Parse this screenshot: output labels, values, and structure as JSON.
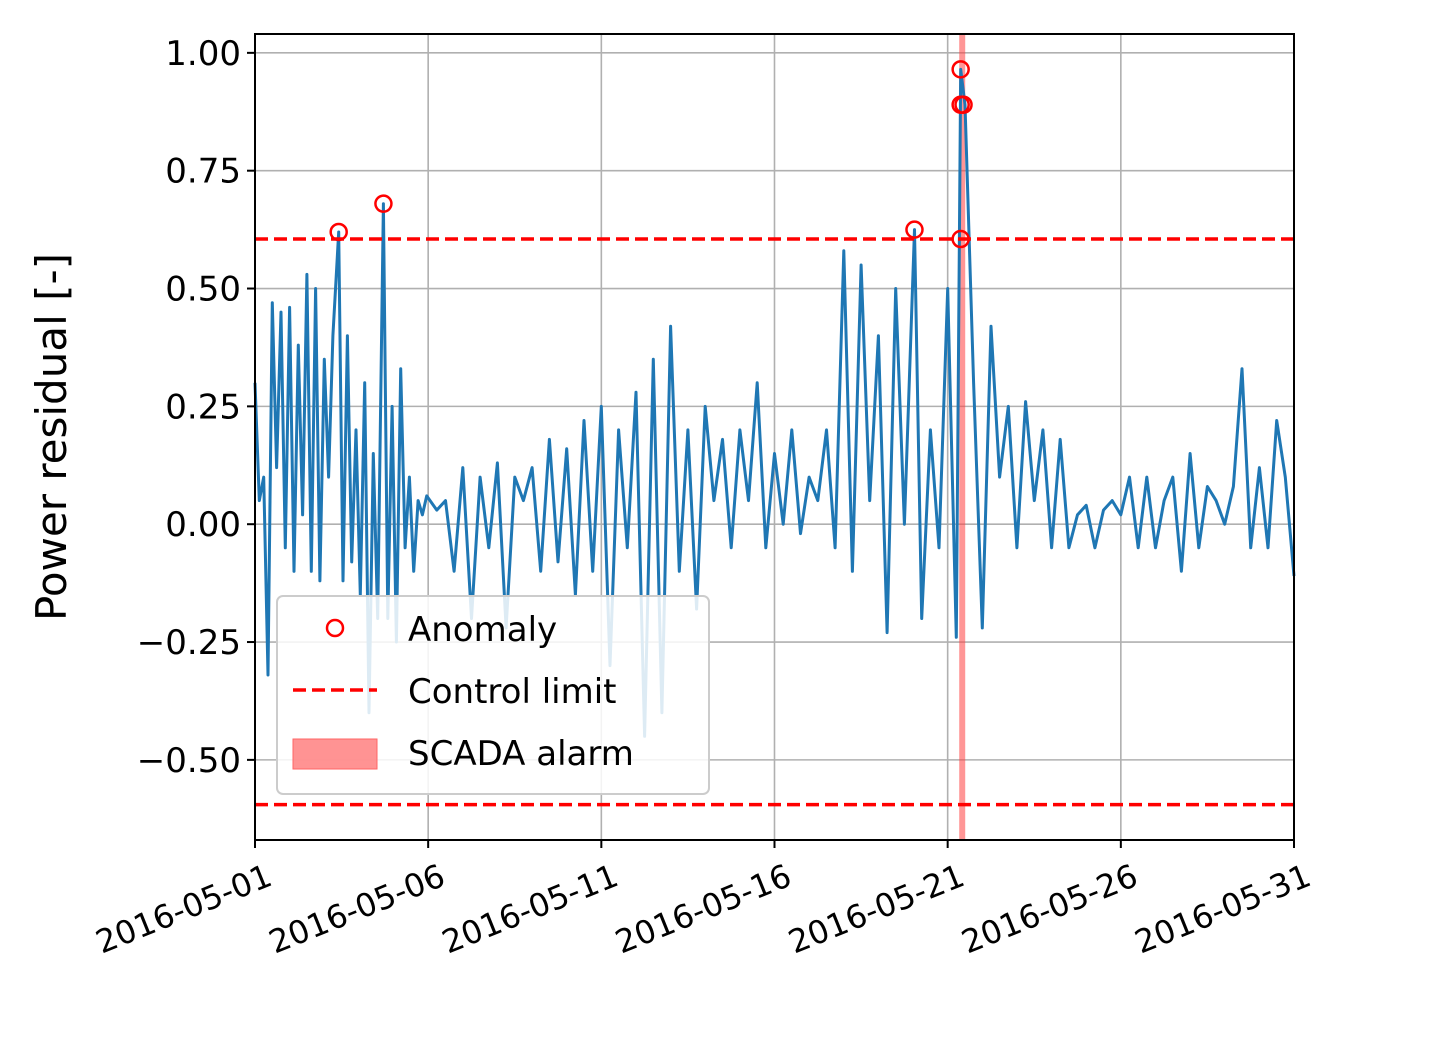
{
  "chart_data": {
    "type": "line",
    "title": "",
    "xlabel": "",
    "ylabel": "Power residual [-]",
    "xlim": [
      "2016-05-01",
      "2016-05-31"
    ],
    "ylim": [
      -0.67,
      1.04
    ],
    "x_ticks": [
      "2016-05-01",
      "2016-05-06",
      "2016-05-11",
      "2016-05-16",
      "2016-05-21",
      "2016-05-26",
      "2016-05-31"
    ],
    "y_ticks": [
      "1.00",
      "0.75",
      "0.50",
      "0.25",
      "0.00",
      "−0.25",
      "−0.50"
    ],
    "grid": true,
    "legend_position": "lower-left",
    "colors": {
      "series": "#1f77b4",
      "limit": "#ff0000",
      "anomaly": "#ff0000",
      "alarm": "#ff8080"
    },
    "legend": [
      {
        "label": "Anomaly",
        "kind": "marker"
      },
      {
        "label": "Control limit",
        "kind": "dashed-line"
      },
      {
        "label": "SCADA alarm",
        "kind": "patch"
      }
    ],
    "control_limits": [
      0.605,
      -0.595
    ],
    "scada_alarm": {
      "x_start": "2016-05-21 08:00",
      "x_end": "2016-05-21 12:00"
    },
    "anomalies": [
      {
        "x": "2016-05-03 10:00",
        "y": 0.62
      },
      {
        "x": "2016-05-04 17:00",
        "y": 0.68
      },
      {
        "x": "2016-05-20 01:00",
        "y": 0.625
      },
      {
        "x": "2016-05-21 09:00",
        "y": 0.965
      },
      {
        "x": "2016-05-21 09:00",
        "y": 0.89
      },
      {
        "x": "2016-05-21 11:00",
        "y": 0.89
      },
      {
        "x": "2016-05-21 09:00",
        "y": 0.605
      }
    ],
    "series": [
      {
        "x": [
          "2016-05-01 00:00",
          "2016-05-01 03:00",
          "2016-05-01 06:00",
          "2016-05-01 09:00",
          "2016-05-01 12:00",
          "2016-05-01 15:00",
          "2016-05-01 18:00",
          "2016-05-01 21:00",
          "2016-05-02 00:00",
          "2016-05-02 03:00",
          "2016-05-02 06:00",
          "2016-05-02 09:00",
          "2016-05-02 12:00",
          "2016-05-02 15:00",
          "2016-05-02 18:00",
          "2016-05-02 21:00",
          "2016-05-03 00:00",
          "2016-05-03 03:00",
          "2016-05-03 06:00",
          "2016-05-03 10:00",
          "2016-05-03 13:00",
          "2016-05-03 16:00",
          "2016-05-03 19:00",
          "2016-05-03 22:00",
          "2016-05-04 01:00",
          "2016-05-04 04:00",
          "2016-05-04 07:00",
          "2016-05-04 10:00",
          "2016-05-04 13:00",
          "2016-05-04 17:00",
          "2016-05-04 20:00",
          "2016-05-04 23:00",
          "2016-05-05 02:00",
          "2016-05-05 05:00",
          "2016-05-05 08:00",
          "2016-05-05 11:00",
          "2016-05-05 14:00",
          "2016-05-05 17:00",
          "2016-05-05 20:00",
          "2016-05-05 23:00",
          "2016-05-06 06:00",
          "2016-05-06 12:00",
          "2016-05-06 18:00",
          "2016-05-07 00:00",
          "2016-05-07 06:00",
          "2016-05-07 12:00",
          "2016-05-07 18:00",
          "2016-05-08 00:00",
          "2016-05-08 06:00",
          "2016-05-08 12:00",
          "2016-05-08 18:00",
          "2016-05-09 00:00",
          "2016-05-09 06:00",
          "2016-05-09 12:00",
          "2016-05-09 18:00",
          "2016-05-10 00:00",
          "2016-05-10 06:00",
          "2016-05-10 12:00",
          "2016-05-10 18:00",
          "2016-05-11 00:00",
          "2016-05-11 06:00",
          "2016-05-11 12:00",
          "2016-05-11 18:00",
          "2016-05-12 00:00",
          "2016-05-12 06:00",
          "2016-05-12 12:00",
          "2016-05-12 18:00",
          "2016-05-13 00:00",
          "2016-05-13 06:00",
          "2016-05-13 12:00",
          "2016-05-13 18:00",
          "2016-05-14 00:00",
          "2016-05-14 06:00",
          "2016-05-14 12:00",
          "2016-05-14 18:00",
          "2016-05-15 00:00",
          "2016-05-15 06:00",
          "2016-05-15 12:00",
          "2016-05-15 18:00",
          "2016-05-16 00:00",
          "2016-05-16 06:00",
          "2016-05-16 12:00",
          "2016-05-16 18:00",
          "2016-05-17 00:00",
          "2016-05-17 06:00",
          "2016-05-17 12:00",
          "2016-05-17 18:00",
          "2016-05-18 00:00",
          "2016-05-18 06:00",
          "2016-05-18 12:00",
          "2016-05-18 18:00",
          "2016-05-19 00:00",
          "2016-05-19 06:00",
          "2016-05-19 12:00",
          "2016-05-19 18:00",
          "2016-05-20 01:00",
          "2016-05-20 06:00",
          "2016-05-20 12:00",
          "2016-05-20 18:00",
          "2016-05-21 00:00",
          "2016-05-21 06:00",
          "2016-05-21 09:00",
          "2016-05-21 12:00",
          "2016-05-21 18:00",
          "2016-05-22 00:00",
          "2016-05-22 06:00",
          "2016-05-22 12:00",
          "2016-05-22 18:00",
          "2016-05-23 00:00",
          "2016-05-23 06:00",
          "2016-05-23 12:00",
          "2016-05-23 18:00",
          "2016-05-24 00:00",
          "2016-05-24 06:00",
          "2016-05-24 12:00",
          "2016-05-24 18:00",
          "2016-05-25 00:00",
          "2016-05-25 06:00",
          "2016-05-25 12:00",
          "2016-05-25 18:00",
          "2016-05-26 00:00",
          "2016-05-26 06:00",
          "2016-05-26 12:00",
          "2016-05-26 18:00",
          "2016-05-27 00:00",
          "2016-05-27 06:00",
          "2016-05-27 12:00",
          "2016-05-27 18:00",
          "2016-05-28 00:00",
          "2016-05-28 06:00",
          "2016-05-28 12:00",
          "2016-05-28 18:00",
          "2016-05-29 00:00",
          "2016-05-29 06:00",
          "2016-05-29 12:00",
          "2016-05-29 18:00",
          "2016-05-30 00:00",
          "2016-05-30 06:00",
          "2016-05-30 12:00",
          "2016-05-30 18:00",
          "2016-05-31 00:00"
        ],
        "values": [
          0.3,
          0.05,
          0.1,
          -0.32,
          0.47,
          0.12,
          0.45,
          -0.05,
          0.46,
          -0.1,
          0.38,
          0.02,
          0.53,
          -0.1,
          0.5,
          -0.12,
          0.35,
          0.1,
          0.4,
          0.62,
          -0.12,
          0.4,
          -0.08,
          0.2,
          -0.15,
          0.3,
          -0.4,
          0.15,
          -0.2,
          0.68,
          -0.2,
          0.25,
          -0.25,
          0.33,
          -0.05,
          0.1,
          -0.1,
          0.05,
          0.02,
          0.06,
          0.03,
          0.05,
          -0.1,
          0.12,
          -0.2,
          0.1,
          -0.05,
          0.13,
          -0.22,
          0.1,
          0.05,
          0.12,
          -0.1,
          0.18,
          -0.08,
          0.16,
          -0.15,
          0.22,
          -0.1,
          0.25,
          -0.3,
          0.2,
          -0.05,
          0.28,
          -0.45,
          0.35,
          -0.4,
          0.42,
          -0.1,
          0.2,
          -0.18,
          0.25,
          0.05,
          0.18,
          -0.05,
          0.2,
          0.05,
          0.3,
          -0.05,
          0.15,
          0.0,
          0.2,
          -0.02,
          0.1,
          0.05,
          0.2,
          -0.05,
          0.58,
          -0.1,
          0.55,
          0.05,
          0.4,
          -0.23,
          0.5,
          0.0,
          0.625,
          -0.2,
          0.2,
          -0.05,
          0.5,
          -0.24,
          0.965,
          0.89,
          0.3,
          -0.22,
          0.42,
          0.1,
          0.25,
          -0.05,
          0.26,
          0.05,
          0.2,
          -0.05,
          0.18,
          -0.05,
          0.02,
          0.04,
          -0.05,
          0.03,
          0.05,
          0.02,
          0.1,
          -0.05,
          0.1,
          -0.05,
          0.05,
          0.1,
          -0.1,
          0.15,
          -0.05,
          0.08,
          0.05,
          0.0,
          0.08,
          0.33,
          -0.05,
          0.12,
          -0.05,
          0.22,
          0.1,
          -0.11
        ]
      }
    ]
  }
}
